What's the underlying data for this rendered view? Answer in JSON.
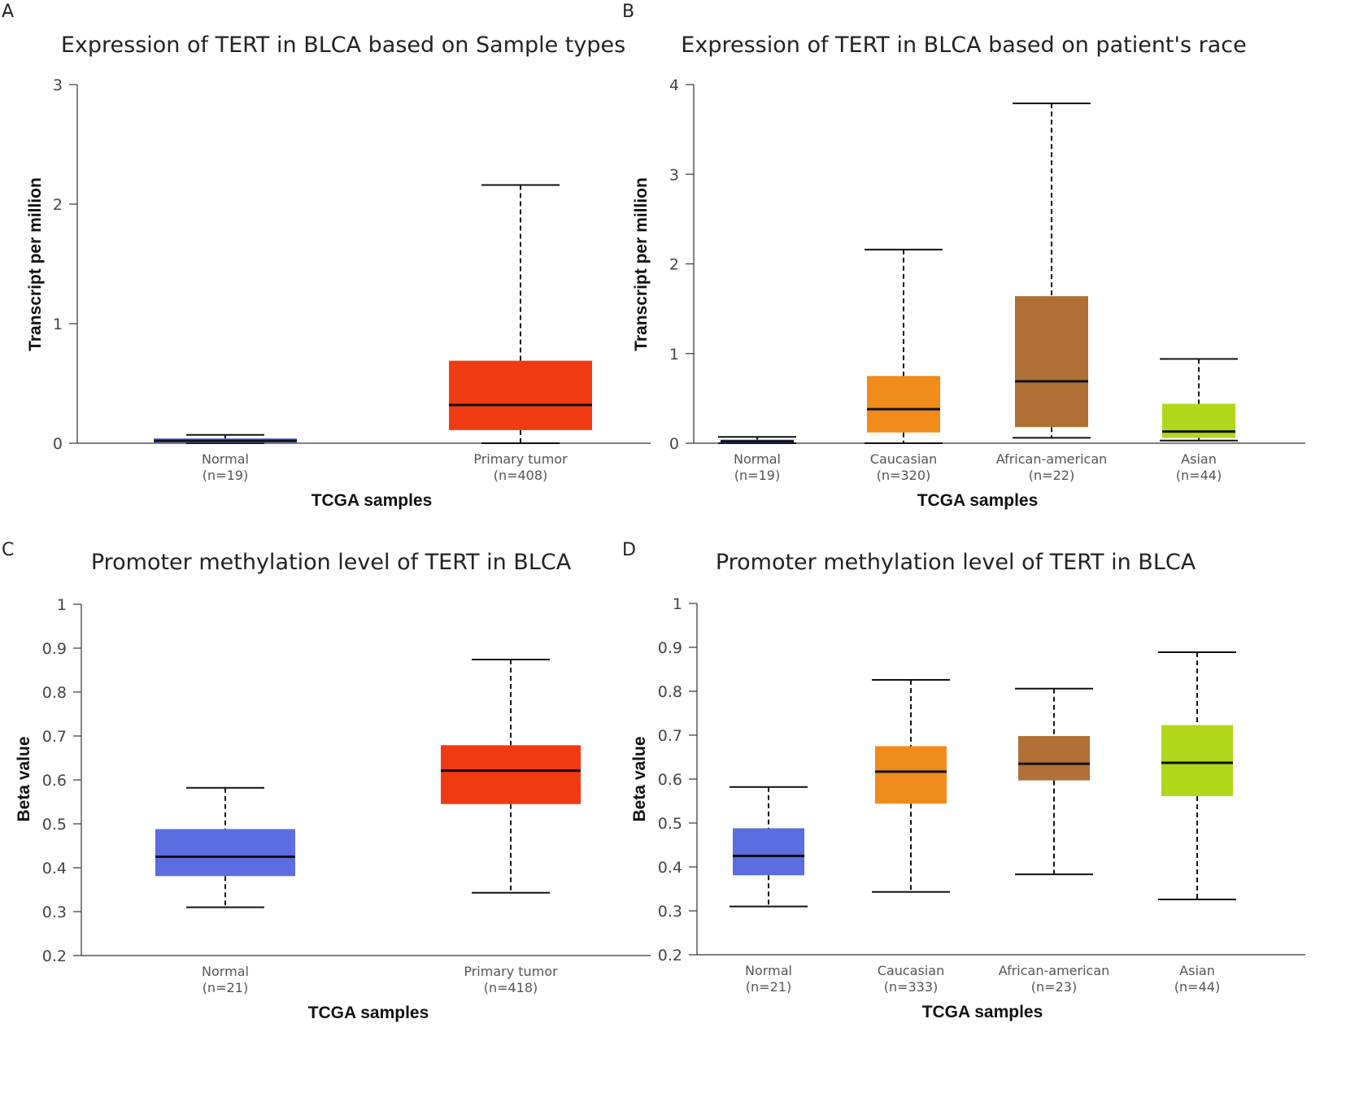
{
  "chart_data": [
    {
      "type": "box",
      "panel": "A",
      "title": "Expression of TERT in BLCA based on Sample types",
      "xlabel": "TCGA samples",
      "ylabel": "Transcript per million",
      "ylim": [
        0,
        3
      ],
      "yticks": [
        0,
        1,
        2,
        3
      ],
      "categories": [
        "Normal",
        "Primary tumor"
      ],
      "counts": [
        "(n=19)",
        "(n=408)"
      ],
      "colors": [
        "#5b6de0",
        "#f03a12"
      ],
      "boxes": [
        {
          "whisker_low": 0,
          "q1": 0.005,
          "median": 0.02,
          "q3": 0.04,
          "whisker_high": 0.07
        },
        {
          "whisker_low": 0,
          "q1": 0.11,
          "median": 0.32,
          "q3": 0.69,
          "whisker_high": 2.16
        }
      ]
    },
    {
      "type": "box",
      "panel": "B",
      "title": "Expression of TERT in BLCA based on patient's race",
      "xlabel": "TCGA samples",
      "ylabel": "Transcript per million",
      "ylim": [
        0,
        4
      ],
      "yticks": [
        0,
        1,
        2,
        3,
        4
      ],
      "categories": [
        "Normal",
        "Caucasian",
        "African-american",
        "Asian"
      ],
      "counts": [
        "(n=19)",
        "(n=320)",
        "(n=22)",
        "(n=44)"
      ],
      "colors": [
        "#5b6de0",
        "#f08c1c",
        "#b07035",
        "#b1d61a"
      ],
      "boxes": [
        {
          "whisker_low": 0,
          "q1": 0.005,
          "median": 0.02,
          "q3": 0.04,
          "whisker_high": 0.07
        },
        {
          "whisker_low": 0,
          "q1": 0.12,
          "median": 0.38,
          "q3": 0.75,
          "whisker_high": 2.16
        },
        {
          "whisker_low": 0.06,
          "q1": 0.18,
          "median": 0.69,
          "q3": 1.64,
          "whisker_high": 3.79
        },
        {
          "whisker_low": 0.03,
          "q1": 0.06,
          "median": 0.13,
          "q3": 0.44,
          "whisker_high": 0.94
        }
      ]
    },
    {
      "type": "box",
      "panel": "C",
      "title": "Promoter methylation level of TERT in BLCA",
      "xlabel": "TCGA samples",
      "ylabel": "Beta value",
      "ylim": [
        0.2,
        1
      ],
      "yticks": [
        0.2,
        0.3,
        0.4,
        0.5,
        0.6,
        0.7,
        0.8,
        0.9,
        1
      ],
      "categories": [
        "Normal",
        "Primary tumor"
      ],
      "counts": [
        "(n=21)",
        "(n=418)"
      ],
      "colors": [
        "#5b6de0",
        "#f03a12"
      ],
      "boxes": [
        {
          "whisker_low": 0.31,
          "q1": 0.381,
          "median": 0.425,
          "q3": 0.488,
          "whisker_high": 0.582
        },
        {
          "whisker_low": 0.343,
          "q1": 0.545,
          "median": 0.621,
          "q3": 0.679,
          "whisker_high": 0.874
        }
      ]
    },
    {
      "type": "box",
      "panel": "D",
      "title": "Promoter methylation level of TERT in BLCA",
      "xlabel": "TCGA samples",
      "ylabel": "Beta value",
      "ylim": [
        0.2,
        1
      ],
      "yticks": [
        0.2,
        0.3,
        0.4,
        0.5,
        0.6,
        0.7,
        0.8,
        0.9,
        1
      ],
      "categories": [
        "Normal",
        "Caucasian",
        "African-american",
        "Asian"
      ],
      "counts": [
        "(n=21)",
        "(n=333)",
        "(n=23)",
        "(n=44)"
      ],
      "colors": [
        "#5b6de0",
        "#f08c1c",
        "#b07035",
        "#b1d61a"
      ],
      "boxes": [
        {
          "whisker_low": 0.31,
          "q1": 0.381,
          "median": 0.425,
          "q3": 0.488,
          "whisker_high": 0.582
        },
        {
          "whisker_low": 0.343,
          "q1": 0.544,
          "median": 0.617,
          "q3": 0.675,
          "whisker_high": 0.826
        },
        {
          "whisker_low": 0.383,
          "q1": 0.597,
          "median": 0.635,
          "q3": 0.698,
          "whisker_high": 0.806
        },
        {
          "whisker_low": 0.326,
          "q1": 0.561,
          "median": 0.637,
          "q3": 0.723,
          "whisker_high": 0.889
        }
      ]
    }
  ]
}
